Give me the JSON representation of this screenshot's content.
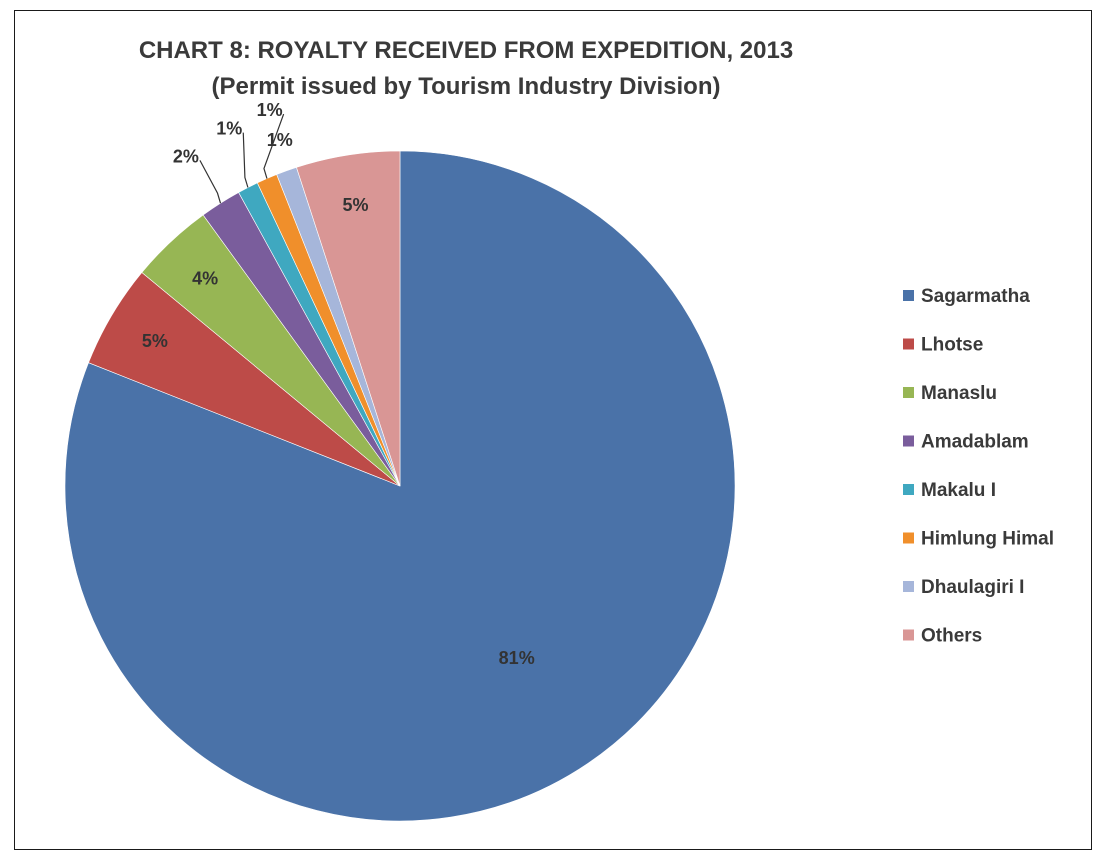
{
  "chart_data": {
    "type": "pie",
    "title": "CHART 8: ROYALTY RECEIVED FROM EXPEDITION, 2013",
    "subtitle": "(Permit issued by Tourism Industry Division)",
    "legend_position": "right",
    "slices": [
      {
        "name": "Sagarmatha",
        "value": 81,
        "label": "81%",
        "color": "#4a72a8"
      },
      {
        "name": "Lhotse",
        "value": 5,
        "label": "5%",
        "color": "#bd4b48"
      },
      {
        "name": "Manaslu",
        "value": 4,
        "label": "4%",
        "color": "#97b654"
      },
      {
        "name": "Amadablam",
        "value": 2,
        "label": "2%",
        "color": "#7a5d9c"
      },
      {
        "name": "Makalu I",
        "value": 1,
        "label": "1%",
        "color": "#3fa8c0"
      },
      {
        "name": "Himlung Himal",
        "value": 1,
        "label": "1%",
        "color": "#f08f2b"
      },
      {
        "name": "Dhaulagiri I",
        "value": 1,
        "label": "1%",
        "color": "#a6b6da"
      },
      {
        "name": "Others",
        "value": 5,
        "label": "5%",
        "color": "#d99695"
      }
    ]
  }
}
